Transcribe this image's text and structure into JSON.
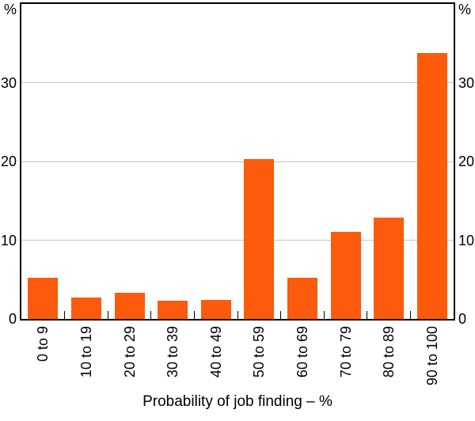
{
  "chart_data": {
    "type": "bar",
    "title": "",
    "categories": [
      "0 to 9",
      "10 to 19",
      "20 to 29",
      "30 to 39",
      "40 to 49",
      "50 to 59",
      "60 to 69",
      "70 to 79",
      "80 to 89",
      "90 to 100"
    ],
    "values": [
      5.2,
      2.7,
      3.3,
      2.3,
      2.4,
      20.3,
      5.2,
      11.1,
      12.9,
      33.8
    ],
    "xlabel": "Probability of job finding – %",
    "y_unit_label_left": "%",
    "y_unit_label_right": "%",
    "yticks": [
      0,
      10,
      20,
      30
    ],
    "ylim": [
      0,
      40
    ],
    "grid": true,
    "legend_position": "none",
    "colors": {
      "bar": "#FC5A0C",
      "grid": "#C6C6C6",
      "axis": "#000000",
      "text": "#000000",
      "background": "#FFFFFF"
    }
  }
}
